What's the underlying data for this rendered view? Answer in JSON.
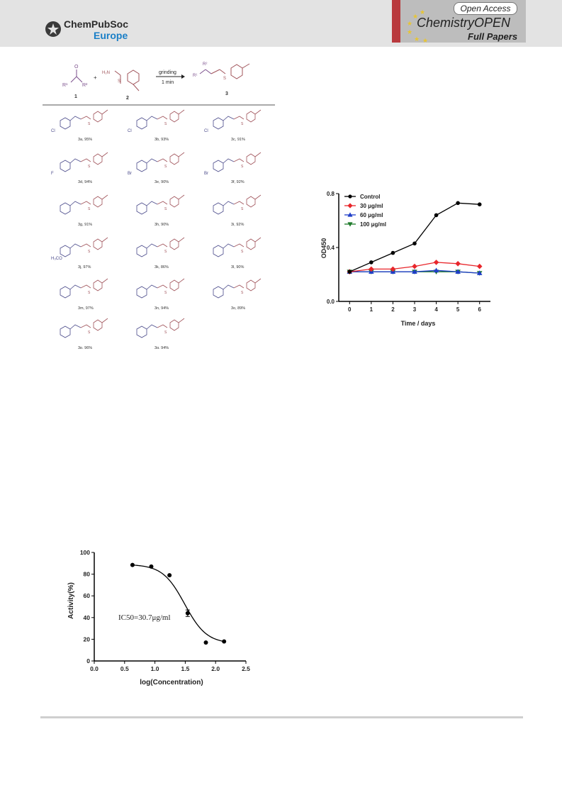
{
  "header": {
    "publisher_line1": "ChemPubSoc",
    "publisher_line2": "Europe",
    "open_access": "Open Access",
    "journal_name_a": "Chemistry",
    "journal_name_b": "OPEN",
    "section": "Full Papers",
    "brand_color": "#1a7fc7",
    "accent_color": "#b93a3e"
  },
  "scheme": {
    "reactant1_label": "1",
    "reactant2_label": "2",
    "product_label": "3",
    "r1": "R¹",
    "r2": "R²",
    "condition_top": "grinding",
    "condition_bottom": "1 min",
    "compounds": [
      {
        "label": "3a, 95%",
        "substituent": "Cl"
      },
      {
        "label": "3b, 93%",
        "substituent": "Cl"
      },
      {
        "label": "3c, 91%",
        "substituent": "Cl"
      },
      {
        "label": "3d, 94%",
        "substituent": "F"
      },
      {
        "label": "3e, 90%",
        "substituent": "Br"
      },
      {
        "label": "3f, 92%",
        "substituent": "Br"
      },
      {
        "label": "3g, 91%",
        "substituent": ""
      },
      {
        "label": "3h, 90%",
        "substituent": ""
      },
      {
        "label": "3i, 92%",
        "substituent": ""
      },
      {
        "label": "3j, 97%",
        "substituent": "H₃CO"
      },
      {
        "label": "3k, 86%",
        "substituent": ""
      },
      {
        "label": "3l, 90%",
        "substituent": ""
      },
      {
        "label": "3m, 97%",
        "substituent": ""
      },
      {
        "label": "3n, 94%",
        "substituent": ""
      },
      {
        "label": "3o, 89%",
        "substituent": ""
      },
      {
        "label": "3p, 96%",
        "substituent": ""
      },
      {
        "label": "3q, 94%",
        "substituent": ""
      }
    ]
  },
  "chart_data": [
    {
      "type": "line",
      "xlabel": "Time / days",
      "ylabel": "OD450",
      "xlim": [
        -0.5,
        6.5
      ],
      "ylim": [
        0.0,
        0.8
      ],
      "xticks": [
        0,
        1,
        2,
        3,
        4,
        5,
        6
      ],
      "yticks": [
        "0.0",
        "0.4",
        "0.8"
      ],
      "legend_position": "top-left",
      "x": [
        0,
        1,
        2,
        3,
        4,
        5,
        6
      ],
      "series": [
        {
          "name": "Control",
          "color": "#000000",
          "marker": "circle",
          "values": [
            0.22,
            0.29,
            0.36,
            0.43,
            0.64,
            0.73,
            0.72
          ]
        },
        {
          "name": "30 μg/ml",
          "color": "#e8262b",
          "marker": "diamond",
          "values": [
            0.22,
            0.24,
            0.24,
            0.26,
            0.29,
            0.28,
            0.26
          ]
        },
        {
          "name": "60 μg/ml",
          "color": "#1f3ec8",
          "marker": "triangle-up",
          "values": [
            0.22,
            0.22,
            0.22,
            0.22,
            0.23,
            0.22,
            0.21
          ]
        },
        {
          "name": "100 μg/ml",
          "color": "#1e7a2b",
          "marker": "triangle-down",
          "values": [
            0.22,
            0.22,
            0.22,
            0.22,
            0.22,
            0.22,
            0.21
          ]
        }
      ]
    },
    {
      "type": "scatter",
      "xlabel": "log(Concentration)",
      "ylabel": "Activity(%)",
      "xlim": [
        0.0,
        2.5
      ],
      "ylim": [
        0,
        100
      ],
      "xticks": [
        "0.0",
        "0.5",
        "1.0",
        "1.5",
        "2.0",
        "2.5"
      ],
      "yticks": [
        "0",
        "20",
        "40",
        "60",
        "80",
        "100"
      ],
      "annotation": "IC50=30.7μg/ml",
      "series": [
        {
          "name": "",
          "color": "#000000",
          "marker": "circle",
          "x": [
            0.63,
            0.94,
            1.24,
            1.54,
            1.84,
            2.14
          ],
          "values": [
            88.5,
            87,
            79,
            44,
            17,
            18
          ]
        }
      ],
      "fit_curve": {
        "bottom": 16,
        "top": 89,
        "logIC50": 1.49,
        "hill": -2.4
      }
    }
  ]
}
